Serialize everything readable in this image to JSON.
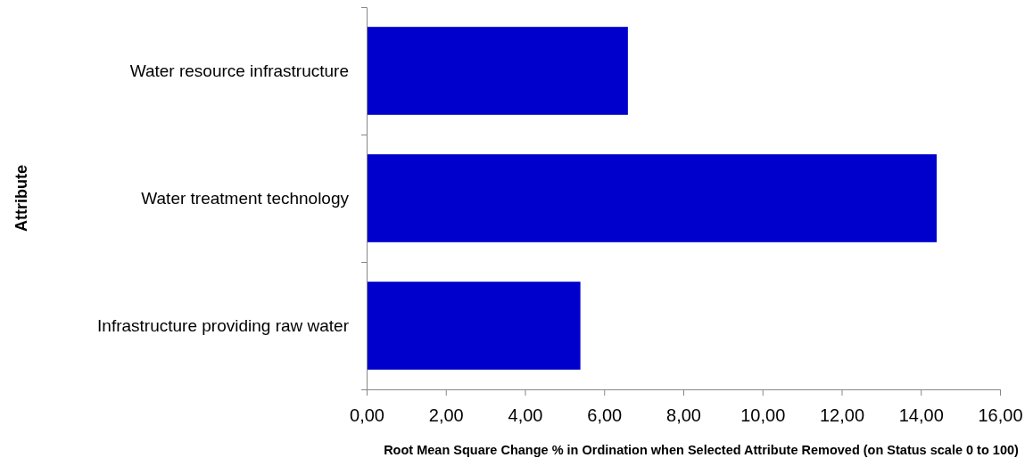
{
  "chart_data": {
    "type": "bar",
    "orientation": "horizontal",
    "xlabel": "Root Mean Square Change % in Ordination when Selected Attribute Removed (on Status scale 0 to 100)",
    "ylabel": "Attribute",
    "categories": [
      "Water resource infrastructure",
      "Water treatment technology",
      "Infrastructure providing raw water"
    ],
    "values": [
      6.6,
      14.4,
      5.4
    ],
    "color": "#0000cc",
    "xlim": [
      0,
      16
    ],
    "xticks": [
      {
        "value": 0,
        "label": "0,00"
      },
      {
        "value": 2,
        "label": "2,00"
      },
      {
        "value": 4,
        "label": "4,00"
      },
      {
        "value": 6,
        "label": "6,00"
      },
      {
        "value": 8,
        "label": "8,00"
      },
      {
        "value": 10,
        "label": "10,00"
      },
      {
        "value": 12,
        "label": "12,00"
      },
      {
        "value": 14,
        "label": "14,00"
      },
      {
        "value": 16,
        "label": "16,00"
      }
    ],
    "grid": false
  }
}
